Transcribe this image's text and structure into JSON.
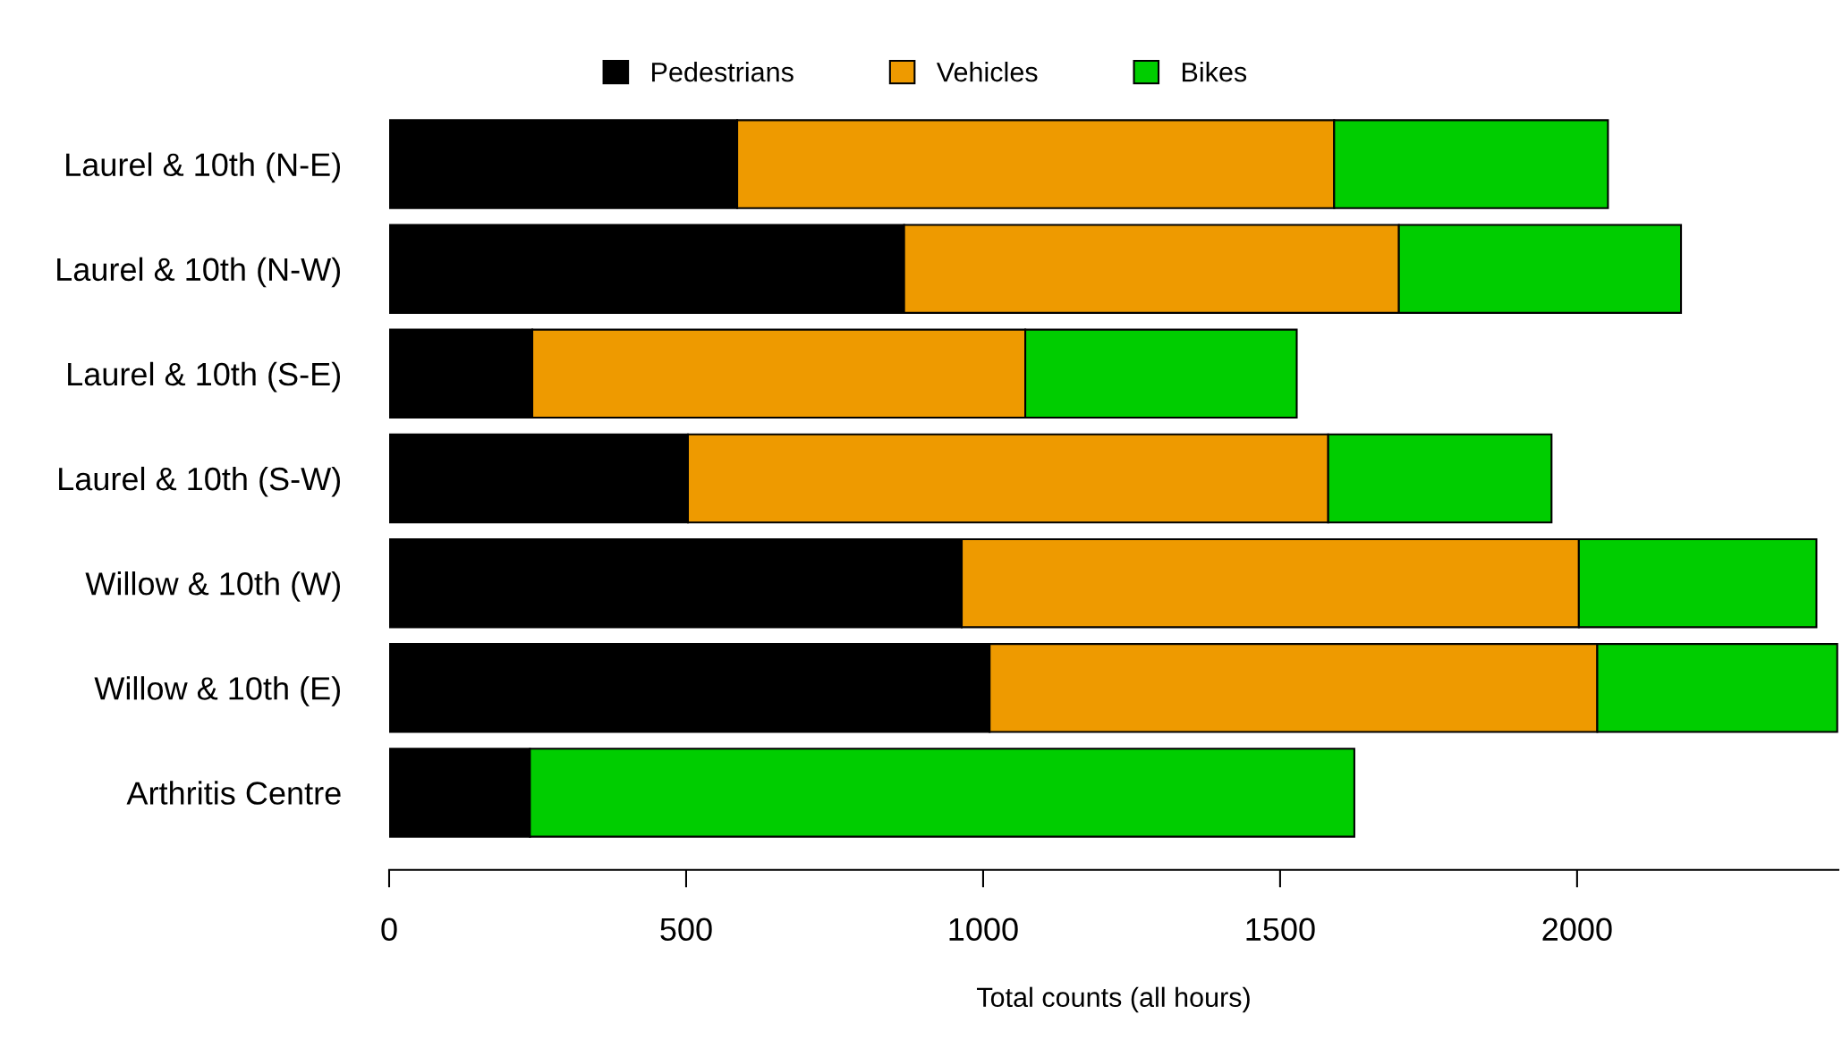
{
  "chart_data": {
    "type": "bar",
    "orientation": "horizontal",
    "stacked": true,
    "categories": [
      "Laurel & 10th (N-E)",
      "Laurel & 10th (N-W)",
      "Laurel & 10th (S-E)",
      "Laurel & 10th (S-W)",
      "Willow & 10th (W)",
      "Willow & 10th (E)",
      "Arthritis Centre"
    ],
    "series": [
      {
        "name": "Pedestrians",
        "color": "#000000",
        "values": [
          586,
          867,
          241,
          503,
          964,
          1011,
          237
        ]
      },
      {
        "name": "Vehicles",
        "color": "#ee9a00",
        "values": [
          1005,
          833,
          830,
          1078,
          1039,
          1023,
          0
        ]
      },
      {
        "name": "Bikes",
        "color": "#00cd00",
        "values": [
          461,
          475,
          457,
          376,
          400,
          404,
          1388
        ]
      }
    ],
    "xlabel": "Total counts (all hours)",
    "xlim": [
      0,
      2440
    ],
    "xticks": [
      0,
      500,
      1000,
      1500,
      2000
    ],
    "grid": false,
    "legend": "top"
  }
}
